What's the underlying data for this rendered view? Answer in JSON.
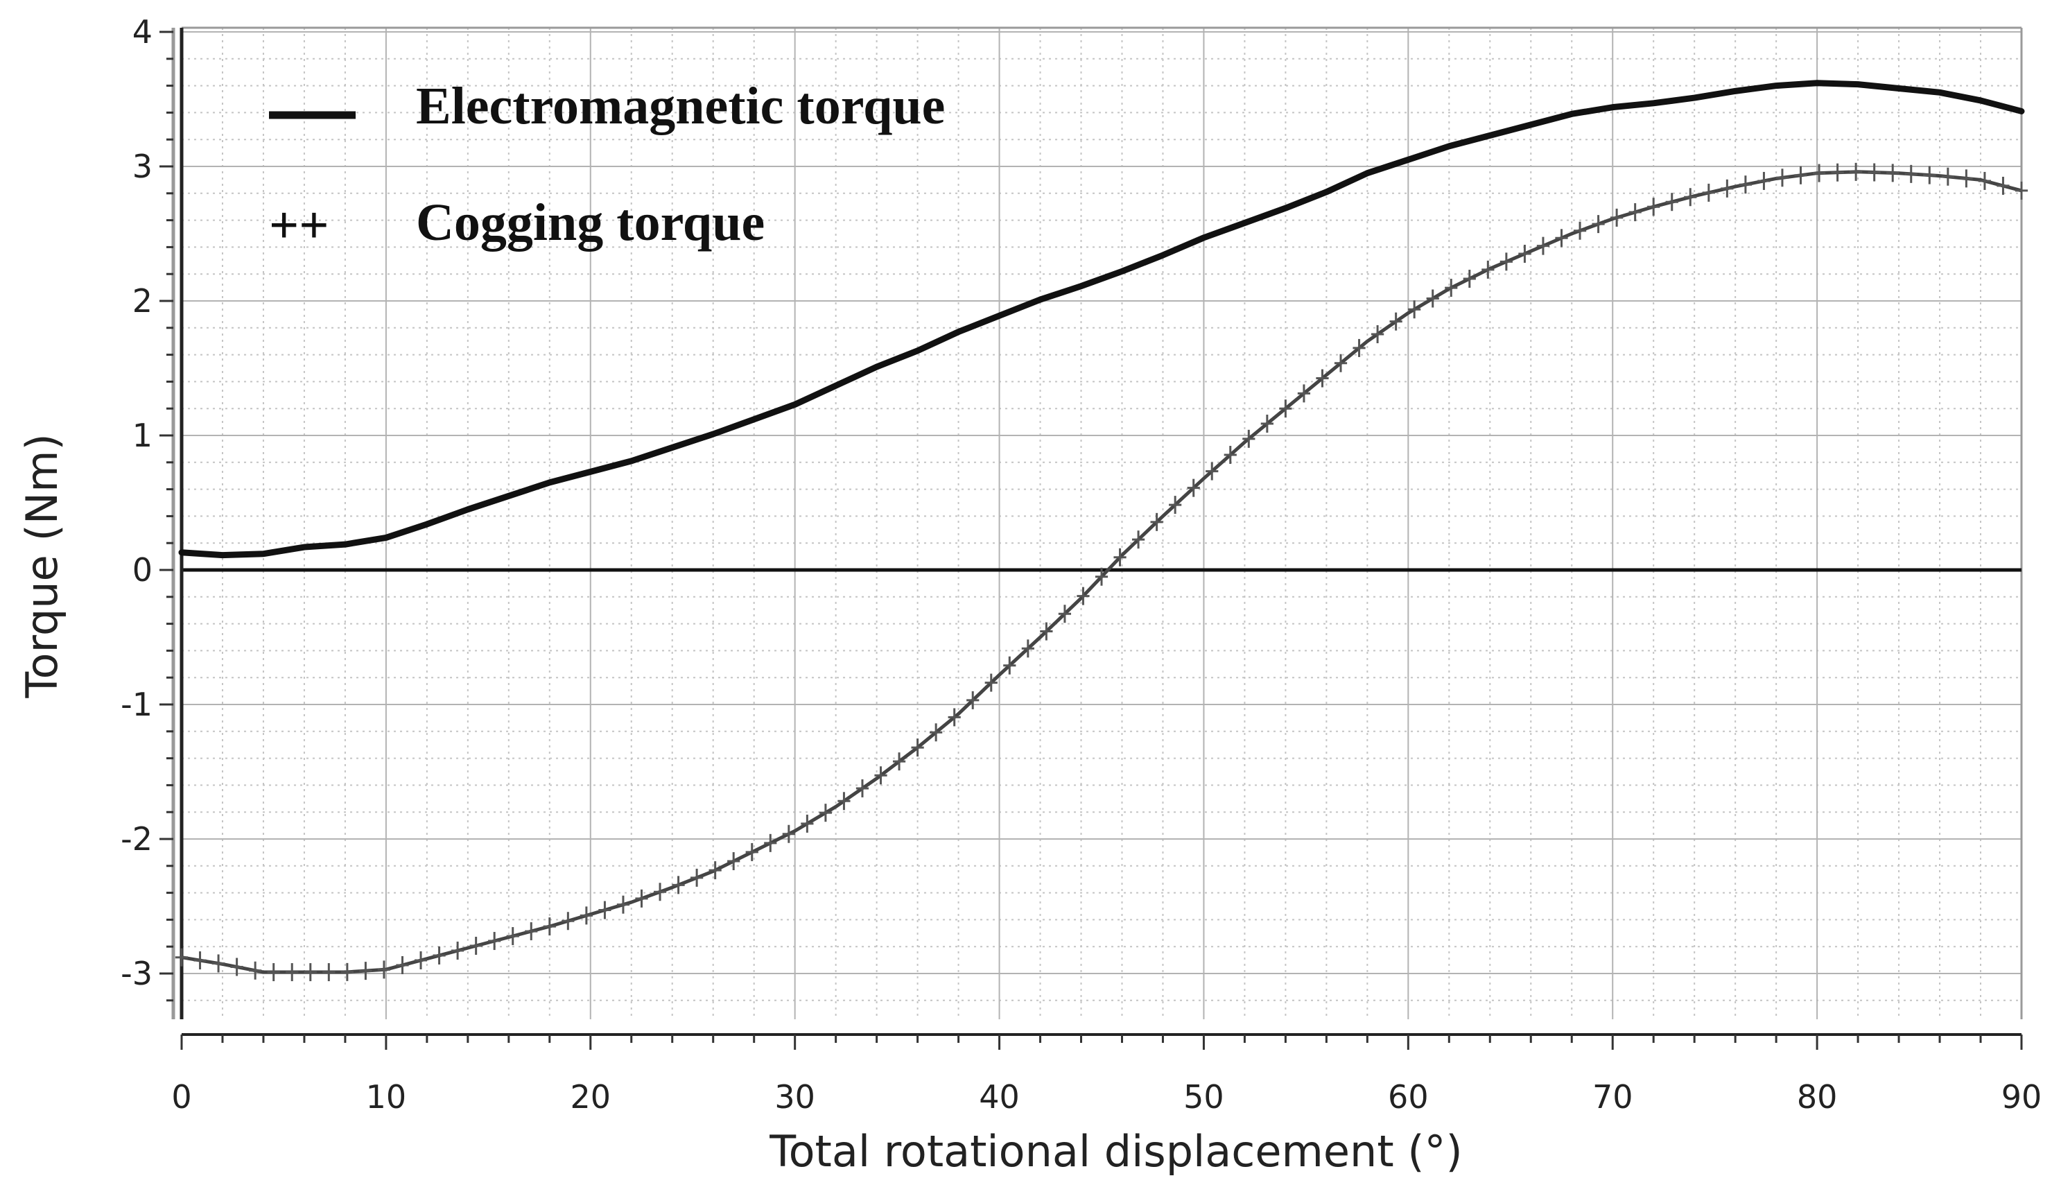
{
  "chart_data": {
    "type": "line",
    "title": "",
    "xlabel": "Total rotational displacement (°)",
    "ylabel": "Torque (Nm)",
    "xlim": [
      0,
      90
    ],
    "ylim": [
      -3.3,
      4
    ],
    "x_ticks": [
      0,
      10,
      20,
      30,
      40,
      50,
      60,
      70,
      80,
      90
    ],
    "x_tick_labels": [
      "0",
      "10",
      "20",
      "30",
      "40",
      "50",
      "60",
      "70",
      "80",
      "90"
    ],
    "y_ticks": [
      -3,
      -2,
      -1,
      0,
      1,
      2,
      3,
      4
    ],
    "y_tick_labels": [
      "-3",
      "-2",
      "-1",
      "0",
      "1",
      "2",
      "3",
      "4"
    ],
    "grid": true,
    "legend_position": "top-left",
    "series": [
      {
        "name": "Electromagnetic torque",
        "legend_symbol": "—",
        "style": "solid",
        "color": "#111111",
        "x": [
          0,
          2,
          4,
          6,
          8,
          10,
          12,
          14,
          16,
          18,
          20,
          22,
          24,
          26,
          28,
          30,
          32,
          34,
          36,
          38,
          40,
          42,
          44,
          46,
          48,
          50,
          52,
          54,
          56,
          58,
          60,
          62,
          64,
          66,
          68,
          70,
          72,
          74,
          76,
          78,
          80,
          82,
          84,
          86,
          88,
          90
        ],
        "y": [
          0.13,
          0.11,
          0.12,
          0.17,
          0.19,
          0.24,
          0.34,
          0.45,
          0.55,
          0.65,
          0.73,
          0.81,
          0.91,
          1.01,
          1.12,
          1.23,
          1.37,
          1.51,
          1.63,
          1.77,
          1.89,
          2.01,
          2.11,
          2.22,
          2.34,
          2.47,
          2.58,
          2.69,
          2.81,
          2.95,
          3.05,
          3.15,
          3.23,
          3.31,
          3.39,
          3.44,
          3.47,
          3.51,
          3.56,
          3.6,
          3.62,
          3.61,
          3.58,
          3.55,
          3.49,
          3.41
        ]
      },
      {
        "name": "Cogging torque",
        "legend_symbol": "++",
        "style": "plus-markers",
        "color": "#444444",
        "x": [
          0,
          2,
          4,
          6,
          8,
          10,
          12,
          14,
          16,
          18,
          20,
          22,
          24,
          26,
          28,
          30,
          32,
          34,
          36,
          38,
          40,
          42,
          44,
          46,
          48,
          50,
          52,
          54,
          56,
          58,
          60,
          62,
          64,
          66,
          68,
          70,
          72,
          74,
          76,
          78,
          80,
          82,
          84,
          86,
          88,
          90
        ],
        "y": [
          -2.88,
          -2.93,
          -2.99,
          -2.99,
          -2.99,
          -2.97,
          -2.89,
          -2.81,
          -2.73,
          -2.65,
          -2.56,
          -2.47,
          -2.36,
          -2.24,
          -2.09,
          -1.94,
          -1.76,
          -1.55,
          -1.32,
          -1.07,
          -0.78,
          -0.5,
          -0.21,
          0.11,
          0.4,
          0.68,
          0.95,
          1.2,
          1.45,
          1.7,
          1.91,
          2.09,
          2.24,
          2.37,
          2.5,
          2.61,
          2.7,
          2.78,
          2.85,
          2.91,
          2.95,
          2.96,
          2.95,
          2.93,
          2.9,
          2.82
        ]
      }
    ]
  }
}
